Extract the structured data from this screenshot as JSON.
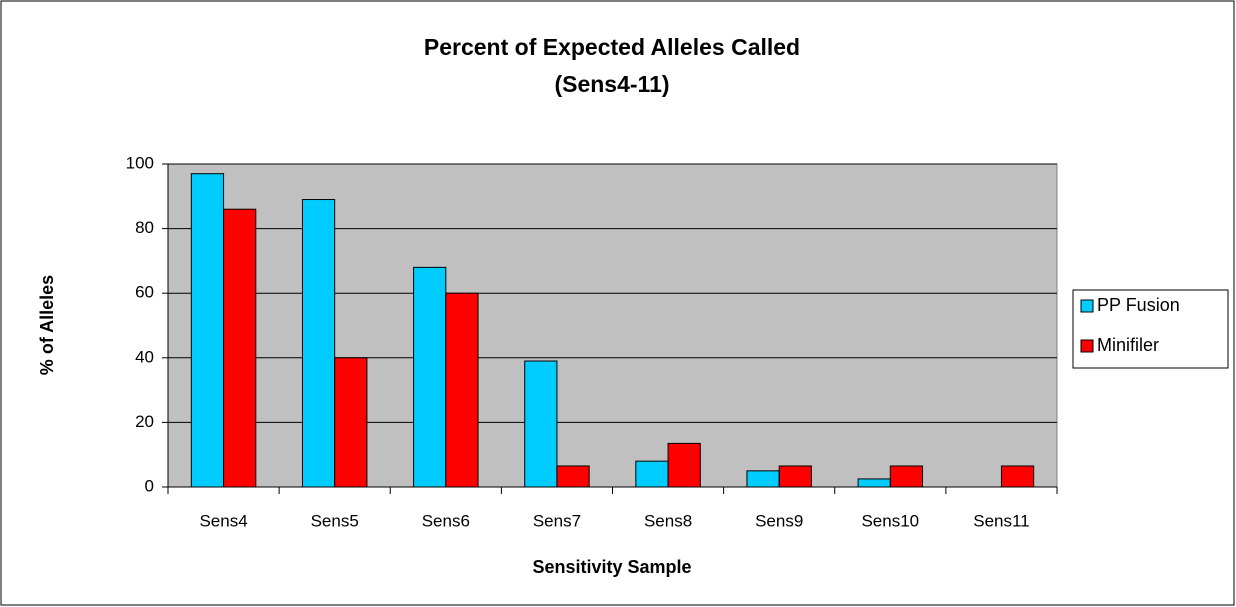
{
  "chart_data": {
    "type": "bar",
    "title": "Percent of Expected Alleles Called",
    "subtitle": "(Sens4-11)",
    "x_label": "Sensitivity Sample",
    "y_label": "% of Alleles",
    "categories": [
      "Sens4",
      "Sens5",
      "Sens6",
      "Sens7",
      "Sens8",
      "Sens9",
      "Sens10",
      "Sens11"
    ],
    "series": [
      {
        "name": "PP Fusion",
        "color": "#00ccff",
        "values": [
          97,
          89,
          68,
          39,
          8,
          5,
          2.5,
          0
        ]
      },
      {
        "name": "Minifiler",
        "color": "#ff0000",
        "values": [
          86,
          40,
          60,
          6.5,
          13.5,
          6.5,
          6.5,
          6.5
        ]
      }
    ],
    "ylim": [
      0,
      100
    ],
    "yticks": [
      0,
      20,
      40,
      60,
      80,
      100
    ],
    "grid": true,
    "plot_background": "#c0c0c0",
    "legend": "right"
  }
}
